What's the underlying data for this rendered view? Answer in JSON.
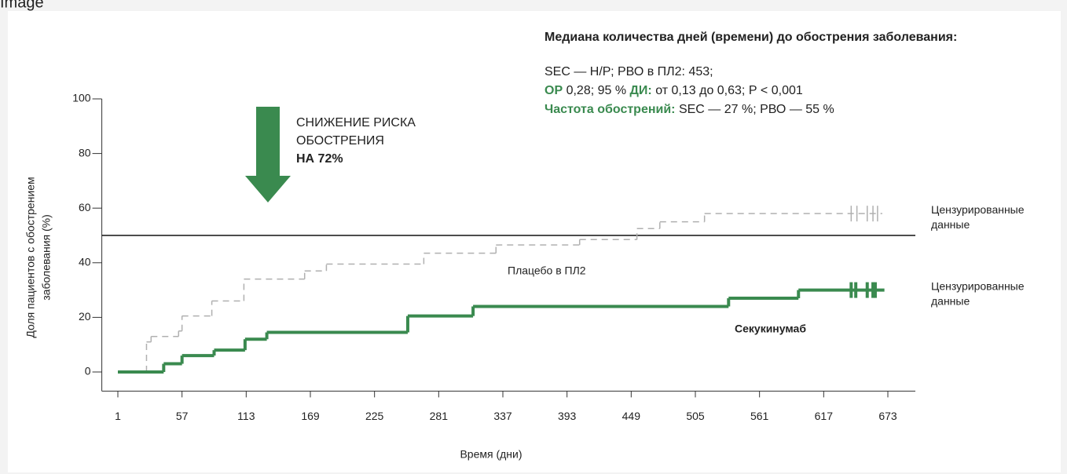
{
  "caption": "Image",
  "chart_data": {
    "type": "line",
    "step": "post",
    "info_title": "Медиана количества дней (времени) до обострения заболевания:",
    "info_lines": [
      [
        {
          "text": "SEC — Н/Р; РВО в ПЛ2: 453;",
          "bold": false
        }
      ],
      [
        {
          "text": "ОР",
          "bold": true
        },
        {
          "text": " 0,28; 95 % ",
          "bold": false
        },
        {
          "text": "ДИ:",
          "bold": true
        },
        {
          "text": " от 0,13 до 0,63; Р < 0,001",
          "bold": false
        }
      ],
      [
        {
          "text": "Частота обострений:",
          "bold": true
        },
        {
          "text": " SEC — 27 %; РВО — 55 %",
          "bold": false
        }
      ]
    ],
    "annotation": [
      "СНИЖЕНИЕ РИСКА",
      "ОБОСТРЕНИЯ",
      "НА 72%"
    ],
    "xlabel": "Время (дни)",
    "ylabel": [
      "Доля пациентов с обострением",
      "заболевания (%)"
    ],
    "xlim": [
      -13,
      697
    ],
    "ylim": [
      -7,
      100
    ],
    "xticks": [
      1,
      57,
      113,
      169,
      225,
      281,
      337,
      393,
      449,
      505,
      561,
      617,
      673
    ],
    "yticks": [
      0,
      20,
      40,
      60,
      80,
      100
    ],
    "reference_line": 50,
    "series": [
      {
        "name": "Плацебо в ПЛ2",
        "color": "#b0b0b0",
        "dashed": true,
        "bold": false,
        "x": [
          1,
          26,
          30,
          54,
          57,
          83,
          111,
          164,
          183,
          268,
          331,
          404,
          454,
          474,
          513,
          668
        ],
        "values": [
          0,
          11,
          13,
          15,
          20.5,
          26,
          34,
          37,
          39.5,
          43.5,
          46.5,
          48.5,
          52.5,
          55,
          58,
          58
        ],
        "censored_x": [
          641,
          646,
          655,
          660,
          664
        ],
        "censored_label": [
          "Цензурированные",
          "данные"
        ]
      },
      {
        "name": "Секукинумаб",
        "color": "#3a8a4f",
        "dashed": false,
        "bold": true,
        "x": [
          1,
          41,
          57,
          85,
          112,
          131,
          254,
          311,
          534,
          595,
          670
        ],
        "values": [
          0,
          3,
          6,
          8,
          12,
          14.5,
          20.5,
          24,
          27,
          30,
          30
        ],
        "censored_x": [
          641,
          645,
          655,
          660,
          662
        ],
        "censored_label": [
          "Цензурированные",
          "данные"
        ]
      }
    ]
  }
}
